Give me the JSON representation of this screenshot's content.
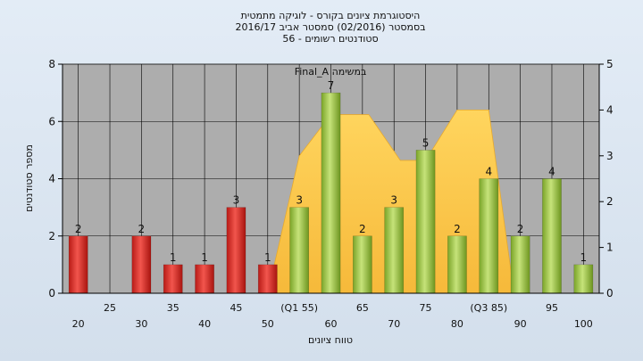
{
  "chart_data": {
    "type": "bar",
    "title_lines": [
      "היסטוגרמת ציונים בקורס - לוגיקה מתמטית",
      "בסמסטר  (02/2016)  סמסטר אביב 2016/17",
      "סטודנטים רשומים - 56"
    ],
    "xlabel": "טווח ציונים",
    "ylabel": "מספר סטודנטים",
    "ylim": [
      0,
      8
    ],
    "y2lim": [
      0,
      5
    ],
    "yticks": [
      "0",
      "2",
      "4",
      "6",
      "8"
    ],
    "y2ticks": [
      "0",
      "1",
      "2",
      "3",
      "4",
      "5"
    ],
    "x_ticks_row1": [
      "25",
      "35",
      "45",
      "(Q1 55)",
      "65",
      "75",
      "(Q3 85)",
      "95"
    ],
    "x_ticks_row2": [
      "20",
      "30",
      "40",
      "50",
      "60",
      "70",
      "80",
      "90",
      "100"
    ],
    "bars": [
      {
        "x": 20,
        "value": 2,
        "label": "2",
        "group": "red"
      },
      {
        "x": 30,
        "value": 2,
        "label": "2",
        "group": "red"
      },
      {
        "x": 35,
        "value": 1,
        "label": "1",
        "group": "red"
      },
      {
        "x": 40,
        "value": 1,
        "label": "1",
        "group": "red"
      },
      {
        "x": 45,
        "value": 3,
        "label": "3",
        "group": "red"
      },
      {
        "x": 50,
        "value": 1,
        "label": "1",
        "group": "red"
      },
      {
        "x": 55,
        "value": 3,
        "label": "3",
        "group": "green"
      },
      {
        "x": 60,
        "value": 7,
        "label": "7",
        "group": "green"
      },
      {
        "x": 65,
        "value": 2,
        "label": "2",
        "group": "green"
      },
      {
        "x": 70,
        "value": 3,
        "label": "3",
        "group": "green"
      },
      {
        "x": 75,
        "value": 5,
        "label": "5",
        "group": "green"
      },
      {
        "x": 80,
        "value": 2,
        "label": "2",
        "group": "green"
      },
      {
        "x": 85,
        "value": 4,
        "label": "4",
        "group": "green"
      },
      {
        "x": 90,
        "value": 2,
        "label": "2",
        "group": "green"
      },
      {
        "x": 95,
        "value": 4,
        "label": "4",
        "group": "green"
      },
      {
        "x": 100,
        "value": 1,
        "label": "1",
        "group": "green"
      }
    ],
    "area_series": {
      "name": "Final_A במשימה",
      "axis": "secondary",
      "points": [
        [
          50,
          0
        ],
        [
          55,
          3
        ],
        [
          60,
          3.9
        ],
        [
          66,
          3.9
        ],
        [
          71,
          2.9
        ],
        [
          75,
          2.9
        ],
        [
          80,
          4
        ],
        [
          85,
          4
        ],
        [
          89,
          0
        ]
      ]
    },
    "colors": {
      "red": "#e0302a",
      "green": "#9cc53c",
      "area": "#ffc84a",
      "plot_bg": "#adadad"
    },
    "grid": true
  }
}
